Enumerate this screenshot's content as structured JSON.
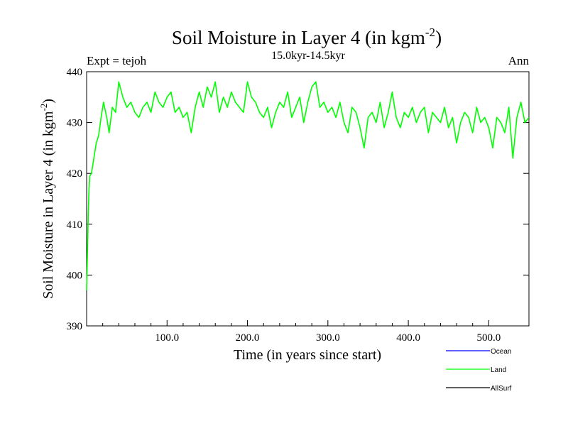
{
  "chart_data": {
    "type": "line",
    "title": "Soil Moisture in Layer 4 (in kgm",
    "title_exp": "-2",
    "title_close": ")",
    "subtitle": "15.0kyr-14.5kyr",
    "left_note": "Expt = tejoh",
    "right_note": "Ann",
    "xlabel": "Time (in years since start)",
    "ylabel": "Soil Moisture in Layer 4 (in kgm",
    "ylabel_exp": "-2",
    "ylabel_close": ")",
    "xlim": [
      0,
      550
    ],
    "ylim": [
      390,
      440
    ],
    "xticks": [
      100,
      200,
      300,
      400,
      500
    ],
    "xtick_labels": [
      "100.0",
      "200.0",
      "300.0",
      "400.0",
      "500.0"
    ],
    "yticks": [
      390,
      400,
      410,
      420,
      430,
      440
    ],
    "ytick_labels": [
      "390",
      "400",
      "410",
      "420",
      "430",
      "440"
    ],
    "legend": [
      {
        "name": "Ocean",
        "color": "#0000ff"
      },
      {
        "name": "Land",
        "color": "#00ff00"
      },
      {
        "name": "AllSurf",
        "color": "#000000"
      }
    ],
    "series": [
      {
        "name": "Land",
        "color": "#00ff00",
        "x": [
          0,
          1,
          2,
          3,
          4,
          6,
          8,
          10,
          12,
          15,
          18,
          21,
          25,
          28,
          32,
          36,
          40,
          45,
          50,
          55,
          60,
          65,
          70,
          75,
          80,
          85,
          90,
          95,
          100,
          105,
          110,
          115,
          120,
          125,
          130,
          135,
          140,
          145,
          150,
          155,
          160,
          165,
          170,
          175,
          180,
          185,
          190,
          195,
          200,
          205,
          210,
          215,
          220,
          225,
          230,
          235,
          240,
          245,
          250,
          255,
          260,
          265,
          270,
          275,
          280,
          285,
          290,
          295,
          300,
          305,
          310,
          315,
          320,
          325,
          330,
          335,
          340,
          345,
          350,
          355,
          360,
          365,
          370,
          375,
          380,
          385,
          390,
          395,
          400,
          405,
          410,
          415,
          420,
          425,
          430,
          435,
          440,
          445,
          450,
          455,
          460,
          465,
          470,
          475,
          480,
          485,
          490,
          495,
          500,
          505,
          510,
          515,
          520,
          525,
          530,
          535,
          540,
          545,
          550
        ],
        "values": [
          397,
          404,
          412,
          417,
          419.5,
          420,
          422,
          424,
          426,
          427.5,
          431,
          434,
          431,
          428,
          433,
          432,
          438,
          435,
          433,
          434,
          432,
          431,
          433,
          434,
          432,
          436,
          434,
          433,
          435,
          436,
          432,
          433,
          431,
          432,
          428,
          433,
          436,
          433,
          437,
          435,
          438,
          432,
          435,
          433,
          436,
          434,
          433,
          432,
          438,
          435,
          434,
          432,
          431,
          433,
          429,
          432,
          434,
          433,
          436,
          431,
          433,
          435,
          430,
          434,
          437,
          438,
          433,
          434,
          432,
          433,
          431,
          434,
          430,
          428,
          433,
          432,
          429,
          425,
          431,
          432,
          430,
          434,
          429,
          432,
          436,
          431,
          429,
          432,
          431,
          433,
          430,
          432,
          433,
          428,
          432,
          431,
          430,
          433,
          429,
          431,
          426,
          430,
          432,
          431,
          428,
          433,
          430,
          431,
          429,
          425,
          431,
          430,
          428,
          433,
          423,
          431,
          434,
          430,
          431
        ]
      }
    ]
  }
}
